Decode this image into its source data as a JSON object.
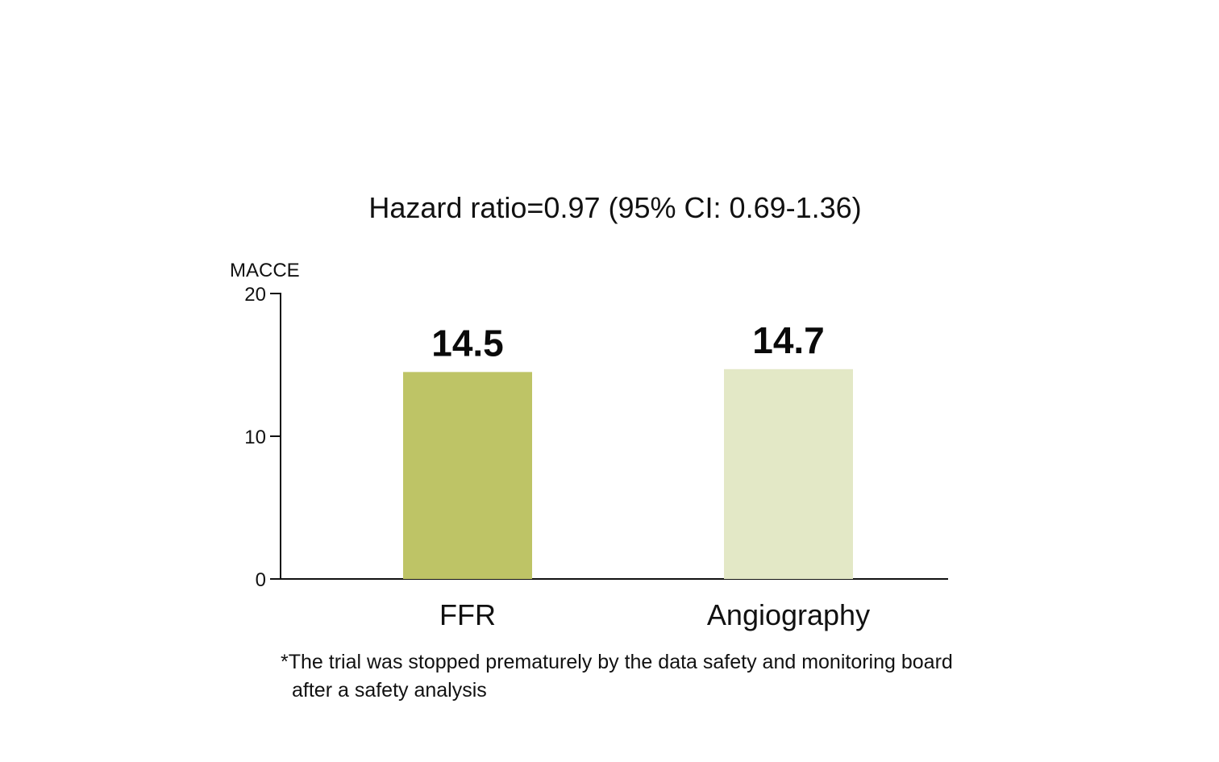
{
  "chart_data": {
    "type": "bar",
    "title": "Hazard ratio=0.97 (95% CI: 0.69-1.36)",
    "ylabel": "MACCE",
    "xlabel": "",
    "categories": [
      "FFR",
      "Angiography"
    ],
    "values": [
      14.5,
      14.7
    ],
    "value_labels": [
      "14.5",
      "14.7"
    ],
    "ylim": [
      0,
      20
    ],
    "yticks": [
      0,
      10,
      20
    ],
    "ytick_labels": [
      "0",
      "10",
      "20"
    ],
    "colors": [
      "#bec466",
      "#e3e8c6"
    ],
    "grid": false,
    "legend": "none"
  },
  "footnote": {
    "line1": "*The trial was stopped prematurely by the data safety and monitoring board",
    "line2": "after a safety analysis"
  }
}
